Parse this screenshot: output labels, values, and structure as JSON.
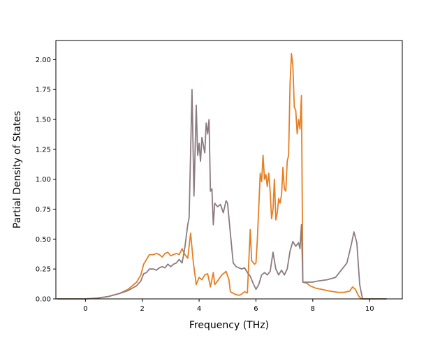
{
  "chart_data": {
    "type": "line",
    "title": "",
    "xlabel": "Frequency (THz)",
    "ylabel": "Partial Density of States",
    "xlim": [
      -1.04,
      11.15
    ],
    "ylim": [
      0.0,
      2.16
    ],
    "grid": false,
    "legend": "none",
    "x_ticks": [
      0,
      2,
      4,
      6,
      8,
      10
    ],
    "x_tick_labels": [
      "0",
      "2",
      "4",
      "6",
      "8",
      "10"
    ],
    "y_ticks": [
      0.0,
      0.25,
      0.5,
      0.75,
      1.0,
      1.25,
      1.5,
      1.75,
      2.0
    ],
    "y_tick_labels": [
      "0.00",
      "0.25",
      "0.50",
      "0.75",
      "1.00",
      "1.25",
      "1.50",
      "1.75",
      "2.00"
    ],
    "series": [
      {
        "color": "#e67e22",
        "points": [
          [
            -1.0,
            0.0
          ],
          [
            -0.2,
            0.0
          ],
          [
            0.0,
            0.0
          ],
          [
            0.4,
            0.006
          ],
          [
            0.8,
            0.02
          ],
          [
            1.2,
            0.045
          ],
          [
            1.5,
            0.08
          ],
          [
            1.8,
            0.14
          ],
          [
            1.95,
            0.2
          ],
          [
            2.05,
            0.29
          ],
          [
            2.15,
            0.33
          ],
          [
            2.25,
            0.37
          ],
          [
            2.4,
            0.37
          ],
          [
            2.5,
            0.38
          ],
          [
            2.6,
            0.37
          ],
          [
            2.7,
            0.35
          ],
          [
            2.8,
            0.38
          ],
          [
            2.9,
            0.39
          ],
          [
            3.0,
            0.36
          ],
          [
            3.1,
            0.37
          ],
          [
            3.2,
            0.38
          ],
          [
            3.3,
            0.37
          ],
          [
            3.4,
            0.42
          ],
          [
            3.5,
            0.37
          ],
          [
            3.6,
            0.34
          ],
          [
            3.7,
            0.55
          ],
          [
            3.8,
            0.3
          ],
          [
            3.9,
            0.12
          ],
          [
            4.0,
            0.18
          ],
          [
            4.1,
            0.16
          ],
          [
            4.2,
            0.2
          ],
          [
            4.3,
            0.21
          ],
          [
            4.4,
            0.1
          ],
          [
            4.5,
            0.22
          ],
          [
            4.55,
            0.12
          ],
          [
            4.65,
            0.15
          ],
          [
            4.8,
            0.2
          ],
          [
            4.95,
            0.23
          ],
          [
            5.05,
            0.16
          ],
          [
            5.1,
            0.06
          ],
          [
            5.25,
            0.04
          ],
          [
            5.4,
            0.03
          ],
          [
            5.5,
            0.04
          ],
          [
            5.6,
            0.06
          ],
          [
            5.7,
            0.05
          ],
          [
            5.8,
            0.58
          ],
          [
            5.85,
            0.32
          ],
          [
            5.95,
            0.29
          ],
          [
            6.0,
            0.3
          ],
          [
            6.05,
            0.5
          ],
          [
            6.15,
            1.05
          ],
          [
            6.2,
            0.98
          ],
          [
            6.25,
            1.2
          ],
          [
            6.3,
            1.0
          ],
          [
            6.35,
            1.04
          ],
          [
            6.4,
            0.94
          ],
          [
            6.45,
            1.05
          ],
          [
            6.5,
            0.9
          ],
          [
            6.55,
            0.67
          ],
          [
            6.6,
            0.75
          ],
          [
            6.65,
            1.0
          ],
          [
            6.7,
            0.66
          ],
          [
            6.75,
            0.72
          ],
          [
            6.8,
            0.84
          ],
          [
            6.85,
            0.8
          ],
          [
            6.9,
            0.87
          ],
          [
            6.95,
            1.1
          ],
          [
            7.0,
            0.92
          ],
          [
            7.05,
            0.9
          ],
          [
            7.1,
            1.15
          ],
          [
            7.15,
            1.2
          ],
          [
            7.2,
            1.8
          ],
          [
            7.25,
            2.05
          ],
          [
            7.3,
            1.95
          ],
          [
            7.35,
            1.6
          ],
          [
            7.4,
            1.58
          ],
          [
            7.45,
            1.38
          ],
          [
            7.5,
            1.5
          ],
          [
            7.55,
            1.42
          ],
          [
            7.6,
            1.7
          ],
          [
            7.65,
            0.14
          ],
          [
            7.8,
            0.13
          ],
          [
            7.9,
            0.11
          ],
          [
            8.0,
            0.1
          ],
          [
            8.1,
            0.09
          ],
          [
            8.3,
            0.08
          ],
          [
            8.6,
            0.065
          ],
          [
            8.9,
            0.055
          ],
          [
            9.1,
            0.055
          ],
          [
            9.3,
            0.065
          ],
          [
            9.4,
            0.1
          ],
          [
            9.5,
            0.08
          ],
          [
            9.6,
            0.03
          ],
          [
            9.7,
            0.0
          ],
          [
            10.6,
            0.0
          ]
        ]
      },
      {
        "color": "#8c7b7f",
        "points": [
          [
            -1.0,
            0.0
          ],
          [
            -0.2,
            0.0
          ],
          [
            0.0,
            0.0
          ],
          [
            0.4,
            0.006
          ],
          [
            0.8,
            0.02
          ],
          [
            1.2,
            0.045
          ],
          [
            1.5,
            0.07
          ],
          [
            1.8,
            0.11
          ],
          [
            1.95,
            0.15
          ],
          [
            2.05,
            0.21
          ],
          [
            2.15,
            0.22
          ],
          [
            2.25,
            0.25
          ],
          [
            2.4,
            0.25
          ],
          [
            2.5,
            0.24
          ],
          [
            2.6,
            0.26
          ],
          [
            2.7,
            0.27
          ],
          [
            2.8,
            0.26
          ],
          [
            2.9,
            0.29
          ],
          [
            3.0,
            0.27
          ],
          [
            3.1,
            0.29
          ],
          [
            3.2,
            0.3
          ],
          [
            3.3,
            0.33
          ],
          [
            3.4,
            0.3
          ],
          [
            3.5,
            0.43
          ],
          [
            3.6,
            0.62
          ],
          [
            3.65,
            0.68
          ],
          [
            3.75,
            1.75
          ],
          [
            3.82,
            0.86
          ],
          [
            3.9,
            1.62
          ],
          [
            3.95,
            1.2
          ],
          [
            4.0,
            1.3
          ],
          [
            4.05,
            1.15
          ],
          [
            4.1,
            1.35
          ],
          [
            4.2,
            1.22
          ],
          [
            4.25,
            1.47
          ],
          [
            4.3,
            1.38
          ],
          [
            4.35,
            1.5
          ],
          [
            4.4,
            0.9
          ],
          [
            4.45,
            0.92
          ],
          [
            4.5,
            0.62
          ],
          [
            4.55,
            0.8
          ],
          [
            4.65,
            0.77
          ],
          [
            4.75,
            0.79
          ],
          [
            4.85,
            0.72
          ],
          [
            4.95,
            0.82
          ],
          [
            5.0,
            0.8
          ],
          [
            5.1,
            0.55
          ],
          [
            5.2,
            0.3
          ],
          [
            5.3,
            0.27
          ],
          [
            5.5,
            0.25
          ],
          [
            5.6,
            0.26
          ],
          [
            5.7,
            0.22
          ],
          [
            5.8,
            0.19
          ],
          [
            5.9,
            0.13
          ],
          [
            6.0,
            0.08
          ],
          [
            6.1,
            0.12
          ],
          [
            6.2,
            0.2
          ],
          [
            6.3,
            0.22
          ],
          [
            6.4,
            0.2
          ],
          [
            6.5,
            0.23
          ],
          [
            6.6,
            0.39
          ],
          [
            6.7,
            0.25
          ],
          [
            6.8,
            0.2
          ],
          [
            6.9,
            0.24
          ],
          [
            7.0,
            0.2
          ],
          [
            7.1,
            0.25
          ],
          [
            7.2,
            0.4
          ],
          [
            7.3,
            0.48
          ],
          [
            7.4,
            0.44
          ],
          [
            7.5,
            0.47
          ],
          [
            7.55,
            0.42
          ],
          [
            7.6,
            0.62
          ],
          [
            7.65,
            0.14
          ],
          [
            7.8,
            0.14
          ],
          [
            8.0,
            0.14
          ],
          [
            8.2,
            0.15
          ],
          [
            8.5,
            0.16
          ],
          [
            8.8,
            0.18
          ],
          [
            9.0,
            0.24
          ],
          [
            9.2,
            0.3
          ],
          [
            9.35,
            0.45
          ],
          [
            9.45,
            0.56
          ],
          [
            9.55,
            0.47
          ],
          [
            9.65,
            0.12
          ],
          [
            9.75,
            0.0
          ],
          [
            10.6,
            0.0
          ]
        ]
      }
    ]
  }
}
